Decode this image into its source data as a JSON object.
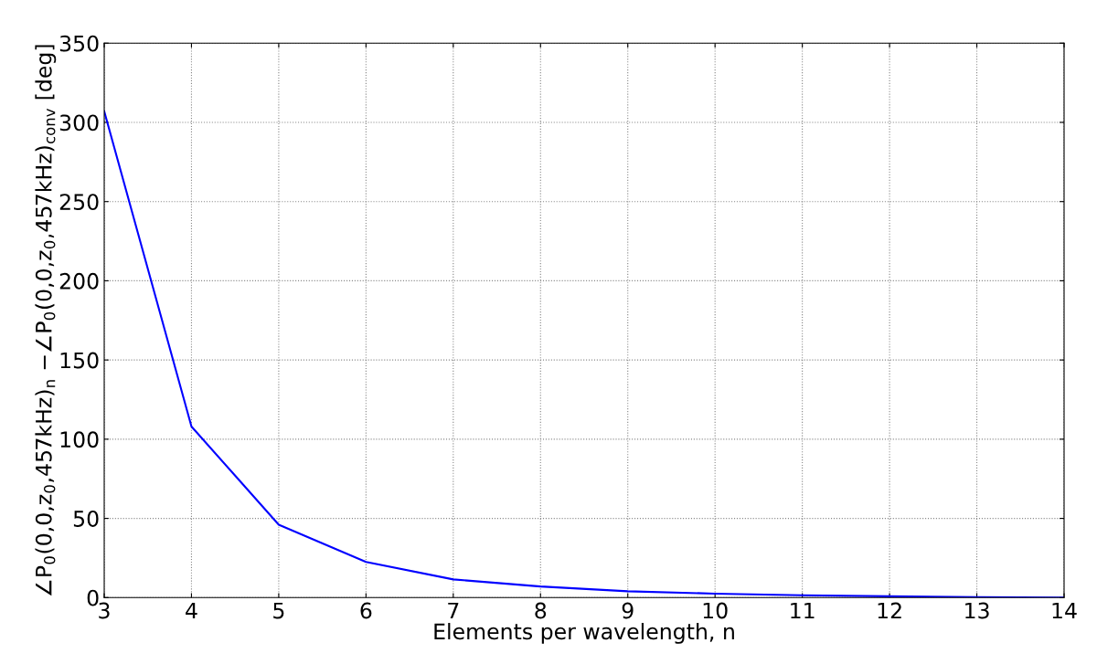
{
  "chart_data": {
    "type": "line",
    "xlabel": "Elements per wavelength, n",
    "ylabel": "∠P$_{0}$(0,0,z$_{0}$,457kHz)$_{n}$ −∠P$_{0}$(0,0,z$_{0}$,457kHz)$_{conv}$ [deg]",
    "x": [
      3,
      4,
      5,
      6,
      7,
      8,
      9,
      10,
      11,
      12,
      13,
      14
    ],
    "series": [
      {
        "color": "#0000ff",
        "values": [
          307,
          108,
          46,
          22.5,
          11.5,
          7,
          4,
          2.5,
          1.5,
          0.8,
          0.3,
          0
        ]
      }
    ],
    "xlim": [
      3,
      14
    ],
    "xticks": [
      3,
      4,
      5,
      6,
      7,
      8,
      9,
      10,
      11,
      12,
      13,
      14
    ],
    "ylim": [
      0,
      350
    ],
    "yticks": [
      0,
      50,
      100,
      150,
      200,
      250,
      300,
      350
    ],
    "grid": true,
    "marker": "none",
    "line_style": "solid"
  }
}
